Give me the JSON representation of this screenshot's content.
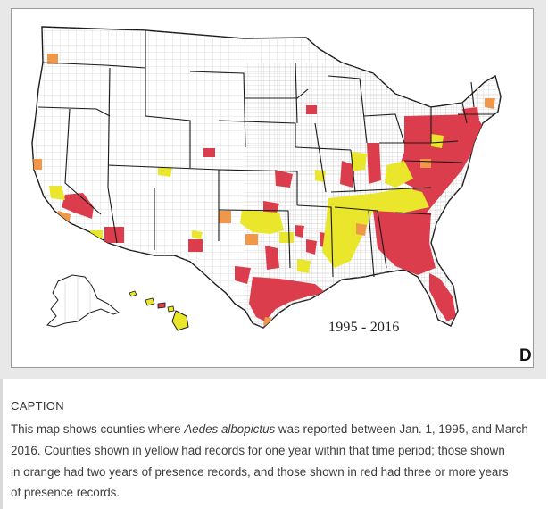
{
  "map": {
    "title_period": "1995 - 2016",
    "panel_label": "D",
    "legend_colors": {
      "one_year": "#e9e62b",
      "two_years": "#f0974a",
      "three_plus": "#dc3d4c"
    },
    "outline_color": "#1a1a1a",
    "county_line_color": "#b8b8b8"
  },
  "caption": {
    "heading": "CAPTION",
    "line1_pre": "This map shows counties where ",
    "line1_species": "Aedes albopictus",
    "line1_post": " was reported between Jan. 1, 1995, and March",
    "line2": "2016. Counties shown in yellow had records for one year within that time period; those shown",
    "line3": "in orange had two years of presence records, and those shown in red had three or more years",
    "line4": "of presence records."
  }
}
